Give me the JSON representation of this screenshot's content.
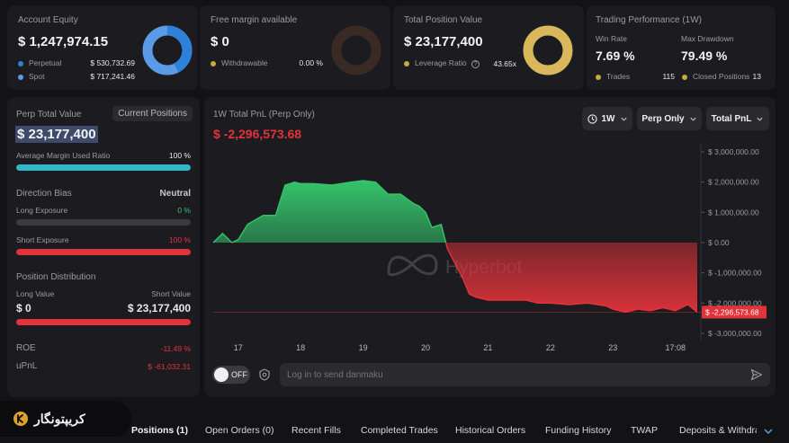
{
  "equity": {
    "label": "Account Equity",
    "value": "$ 1,247,974.15",
    "items": [
      {
        "name": "Perpetual",
        "value": "$ 530,732.69",
        "color": "#2f80d8"
      },
      {
        "name": "Spot",
        "value": "$ 717,241.46",
        "color": "#5b9be6"
      }
    ]
  },
  "free_margin": {
    "label": "Free margin available",
    "value": "$ 0",
    "withdrawable_label": "Withdrawable",
    "withdrawable_value": "0.00 %"
  },
  "position_value": {
    "label": "Total Position Value",
    "value": "$ 23,177,400",
    "leverage_label": "Leverage Ratio",
    "leverage_value": "43.65x"
  },
  "trading_perf": {
    "label": "Trading Performance (1W)",
    "win_rate_label": "Win Rate",
    "win_rate": "7.69 %",
    "drawdown_label": "Max Drawdown",
    "drawdown": "79.49 %",
    "trades_label": "Trades",
    "trades": "115",
    "closed_label": "Closed Positions",
    "closed": "13"
  },
  "perp": {
    "label": "Perp Total Value",
    "button": "Current Positions",
    "value": "$ 23,177,400",
    "margin_label": "Average Margin Used Ratio",
    "margin_value": "100 %",
    "margin_fill": 1.0,
    "bias_label": "Direction Bias",
    "bias_value": "Neutral",
    "long_label": "Long Exposure",
    "long_value": "0 %",
    "long_fill": 0,
    "short_label": "Short Exposure",
    "short_value": "100 %",
    "short_fill": 1.0,
    "dist_label": "Position Distribution",
    "long_value_label": "Long Value",
    "short_value_label": "Short Value",
    "long_amount": "$ 0",
    "short_amount": "$ 23,177,400",
    "roe_label": "ROE",
    "roe_value": "-11.49 %",
    "upnl_label": "uPnL",
    "upnl_value": "$ -61,032.31"
  },
  "chart_panel": {
    "title": "1W Total PnL (Perp Only)",
    "value": "$ -2,296,573.68",
    "range_select": "1W",
    "perp_select": "Perp Only",
    "total_select": "Total PnL",
    "watermark": "Hyperbot",
    "current_tag": "$ -2,296,573.68"
  },
  "danmaku": {
    "toggle": "OFF",
    "placeholder": "Log in to send danmaku"
  },
  "brand": {
    "name": "کریپتونگار"
  },
  "tabs": [
    "Positions (1)",
    "Open Orders (0)",
    "Recent Fills",
    "Completed Trades",
    "Historical Orders",
    "Funding History",
    "TWAP",
    "Deposits & Withdraw"
  ],
  "colors": {
    "accent_cyan": "#2fb8c9",
    "up_green": "#35c36b",
    "down_red": "#e2333a"
  },
  "chart_data": {
    "type": "area",
    "title": "1W Total PnL (Perp Only)",
    "x_tick_labels": [
      "17",
      "18",
      "19",
      "20",
      "21",
      "22",
      "23",
      "17:08"
    ],
    "y_tick_labels": [
      "$ 3,000,000.00",
      "$ 2,000,000.00",
      "$ 1,000,000.00",
      "$ 0.00",
      "$ -1,000,000.00",
      "$ -2,000,000.00",
      "$ -3,000,000.00"
    ],
    "ylim": [
      -3000000,
      3000000
    ],
    "x_days": [
      16.6,
      16.75,
      16.9,
      17.0,
      17.15,
      17.4,
      17.6,
      17.75,
      17.9,
      18.0,
      18.2,
      18.5,
      18.8,
      19.0,
      19.2,
      19.4,
      19.6,
      19.7,
      19.8,
      19.9,
      20.0,
      20.1,
      20.25,
      20.35,
      20.5,
      20.6,
      20.7,
      20.8,
      21.0,
      21.3,
      21.6,
      21.8,
      22.0,
      22.3,
      22.6,
      22.9,
      23.0,
      23.2,
      23.4,
      23.6,
      23.8,
      24.0,
      24.2,
      24.35
    ],
    "values": [
      0,
      300000,
      0,
      100000,
      600000,
      900000,
      900000,
      1900000,
      2000000,
      1950000,
      1950000,
      1900000,
      2000000,
      2050000,
      2000000,
      1600000,
      1600000,
      1450000,
      1300000,
      1200000,
      1000000,
      500000,
      600000,
      -200000,
      -800000,
      -1200000,
      -1700000,
      -1800000,
      -1900000,
      -1900000,
      -1900000,
      -2000000,
      -2000000,
      -2050000,
      -2000000,
      -2100000,
      -2200000,
      -2300000,
      -2200000,
      -2250000,
      -2150000,
      -2250000,
      -2050000,
      -2300000
    ],
    "current_value": -2296573.68
  }
}
